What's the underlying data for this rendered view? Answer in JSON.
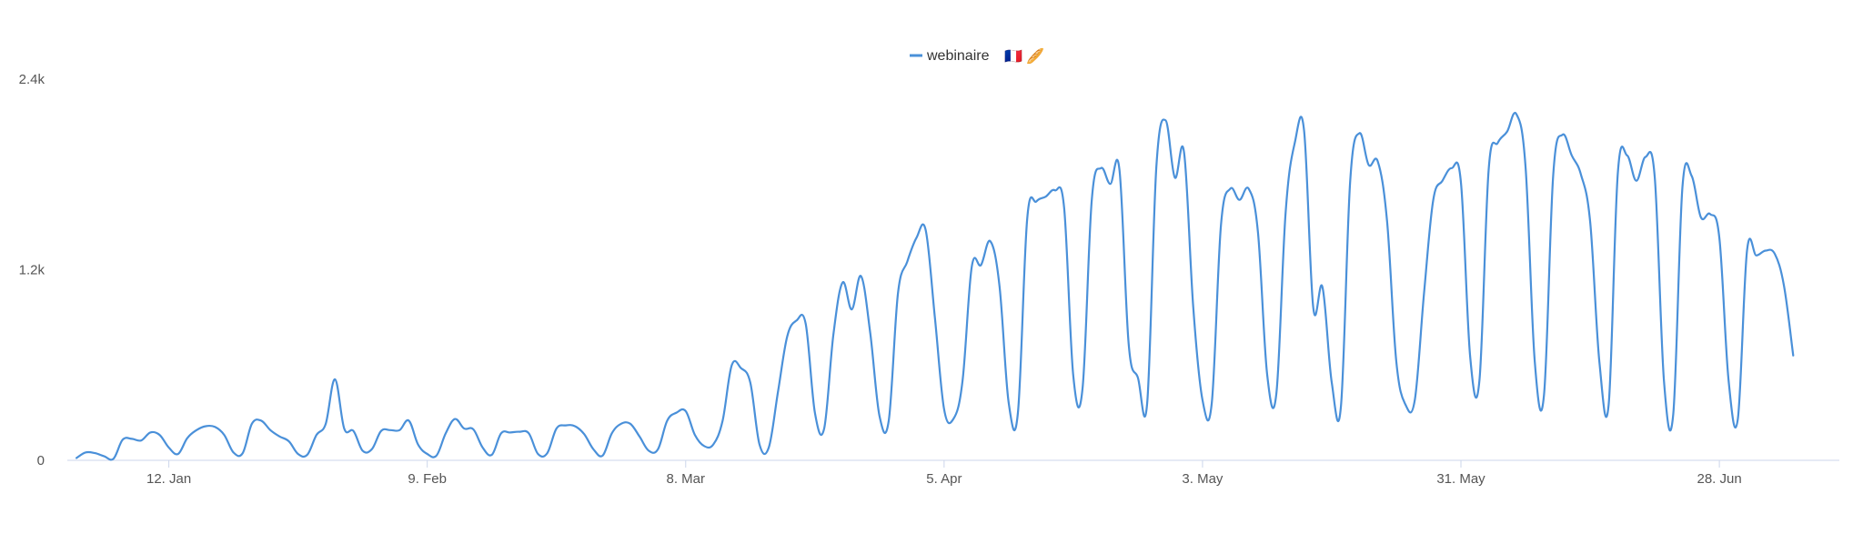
{
  "chart_data": {
    "type": "line",
    "legend": {
      "position": "top-center",
      "label": "webinaire",
      "emoji": "🇫🇷 🥖"
    },
    "x_axis": {
      "ticks": [
        {
          "label": "12. Jan",
          "x": 7
        },
        {
          "label": "9. Feb",
          "x": 35
        },
        {
          "label": "8. Mar",
          "x": 63
        },
        {
          "label": "5. Apr",
          "x": 91
        },
        {
          "label": "3. May",
          "x": 119
        },
        {
          "label": "31. May",
          "x": 147
        },
        {
          "label": "28. Jun",
          "x": 175
        }
      ],
      "range": [
        -4,
        188
      ]
    },
    "y_axis": {
      "ticks": [
        {
          "label": "0",
          "value": 0
        },
        {
          "label": "1.2k",
          "value": 1200
        },
        {
          "label": "2.4k",
          "value": 2400
        }
      ],
      "range": [
        0,
        2400
      ],
      "grid": false
    },
    "series": [
      {
        "name": "webinaire",
        "color": "#4a90d9",
        "points": [
          [
            -3,
            15
          ],
          [
            -2,
            50
          ],
          [
            -1,
            45
          ],
          [
            0,
            25
          ],
          [
            1,
            10
          ],
          [
            2,
            130
          ],
          [
            3,
            135
          ],
          [
            4,
            125
          ],
          [
            5,
            175
          ],
          [
            6,
            160
          ],
          [
            7,
            80
          ],
          [
            8,
            40
          ],
          [
            9,
            140
          ],
          [
            10,
            190
          ],
          [
            11,
            215
          ],
          [
            12,
            210
          ],
          [
            13,
            160
          ],
          [
            14,
            50
          ],
          [
            15,
            45
          ],
          [
            16,
            230
          ],
          [
            17,
            250
          ],
          [
            18,
            190
          ],
          [
            19,
            150
          ],
          [
            20,
            120
          ],
          [
            21,
            40
          ],
          [
            22,
            35
          ],
          [
            23,
            160
          ],
          [
            24,
            230
          ],
          [
            25,
            510
          ],
          [
            26,
            200
          ],
          [
            27,
            185
          ],
          [
            28,
            60
          ],
          [
            29,
            70
          ],
          [
            30,
            185
          ],
          [
            31,
            190
          ],
          [
            32,
            190
          ],
          [
            33,
            250
          ],
          [
            34,
            100
          ],
          [
            35,
            40
          ],
          [
            36,
            30
          ],
          [
            37,
            170
          ],
          [
            38,
            260
          ],
          [
            39,
            200
          ],
          [
            40,
            195
          ],
          [
            41,
            80
          ],
          [
            42,
            35
          ],
          [
            43,
            170
          ],
          [
            44,
            175
          ],
          [
            45,
            180
          ],
          [
            46,
            170
          ],
          [
            47,
            40
          ],
          [
            48,
            45
          ],
          [
            49,
            200
          ],
          [
            50,
            220
          ],
          [
            51,
            215
          ],
          [
            52,
            165
          ],
          [
            53,
            70
          ],
          [
            54,
            30
          ],
          [
            55,
            170
          ],
          [
            56,
            230
          ],
          [
            57,
            230
          ],
          [
            58,
            150
          ],
          [
            59,
            60
          ],
          [
            60,
            70
          ],
          [
            61,
            250
          ],
          [
            62,
            300
          ],
          [
            63,
            310
          ],
          [
            64,
            160
          ],
          [
            65,
            90
          ],
          [
            66,
            100
          ],
          [
            67,
            250
          ],
          [
            68,
            600
          ],
          [
            69,
            580
          ],
          [
            70,
            490
          ],
          [
            71,
            100
          ],
          [
            72,
            80
          ],
          [
            73,
            430
          ],
          [
            74,
            780
          ],
          [
            75,
            880
          ],
          [
            76,
            860
          ],
          [
            77,
            300
          ],
          [
            78,
            200
          ],
          [
            79,
            790
          ],
          [
            80,
            1120
          ],
          [
            81,
            950
          ],
          [
            82,
            1160
          ],
          [
            83,
            800
          ],
          [
            84,
            280
          ],
          [
            85,
            250
          ],
          [
            86,
            1050
          ],
          [
            87,
            1250
          ],
          [
            88,
            1400
          ],
          [
            89,
            1450
          ],
          [
            90,
            900
          ],
          [
            91,
            320
          ],
          [
            92,
            260
          ],
          [
            93,
            500
          ],
          [
            94,
            1220
          ],
          [
            95,
            1230
          ],
          [
            96,
            1380
          ],
          [
            97,
            1100
          ],
          [
            98,
            360
          ],
          [
            99,
            300
          ],
          [
            100,
            1520
          ],
          [
            101,
            1630
          ],
          [
            102,
            1660
          ],
          [
            103,
            1700
          ],
          [
            104,
            1590
          ],
          [
            105,
            530
          ],
          [
            106,
            450
          ],
          [
            107,
            1640
          ],
          [
            108,
            1840
          ],
          [
            109,
            1740
          ],
          [
            110,
            1830
          ],
          [
            111,
            730
          ],
          [
            112,
            520
          ],
          [
            113,
            360
          ],
          [
            114,
            1850
          ],
          [
            115,
            2140
          ],
          [
            116,
            1780
          ],
          [
            117,
            1940
          ],
          [
            118,
            960
          ],
          [
            119,
            380
          ],
          [
            120,
            360
          ],
          [
            121,
            1480
          ],
          [
            122,
            1710
          ],
          [
            123,
            1640
          ],
          [
            124,
            1710
          ],
          [
            125,
            1440
          ],
          [
            126,
            540
          ],
          [
            127,
            420
          ],
          [
            128,
            1560
          ],
          [
            129,
            2000
          ],
          [
            130,
            2080
          ],
          [
            131,
            960
          ],
          [
            132,
            1090
          ],
          [
            133,
            490
          ],
          [
            134,
            340
          ],
          [
            135,
            1760
          ],
          [
            136,
            2060
          ],
          [
            137,
            1860
          ],
          [
            138,
            1880
          ],
          [
            139,
            1500
          ],
          [
            140,
            620
          ],
          [
            141,
            350
          ],
          [
            142,
            380
          ],
          [
            143,
            1050
          ],
          [
            144,
            1640
          ],
          [
            145,
            1760
          ],
          [
            146,
            1840
          ],
          [
            147,
            1750
          ],
          [
            148,
            650
          ],
          [
            149,
            500
          ],
          [
            150,
            1830
          ],
          [
            151,
            2000
          ],
          [
            152,
            2070
          ],
          [
            153,
            2180
          ],
          [
            154,
            1850
          ],
          [
            155,
            620
          ],
          [
            156,
            410
          ],
          [
            157,
            1800
          ],
          [
            158,
            2050
          ],
          [
            159,
            1920
          ],
          [
            160,
            1800
          ],
          [
            161,
            1500
          ],
          [
            162,
            620
          ],
          [
            163,
            350
          ],
          [
            164,
            1810
          ],
          [
            165,
            1920
          ],
          [
            166,
            1760
          ],
          [
            167,
            1910
          ],
          [
            168,
            1780
          ],
          [
            169,
            500
          ],
          [
            170,
            290
          ],
          [
            171,
            1720
          ],
          [
            172,
            1790
          ],
          [
            173,
            1530
          ],
          [
            174,
            1550
          ],
          [
            175,
            1400
          ],
          [
            176,
            500
          ],
          [
            177,
            260
          ],
          [
            178,
            1320
          ],
          [
            179,
            1290
          ],
          [
            180,
            1320
          ],
          [
            181,
            1300
          ],
          [
            182,
            1100
          ],
          [
            183,
            660
          ]
        ]
      }
    ]
  }
}
